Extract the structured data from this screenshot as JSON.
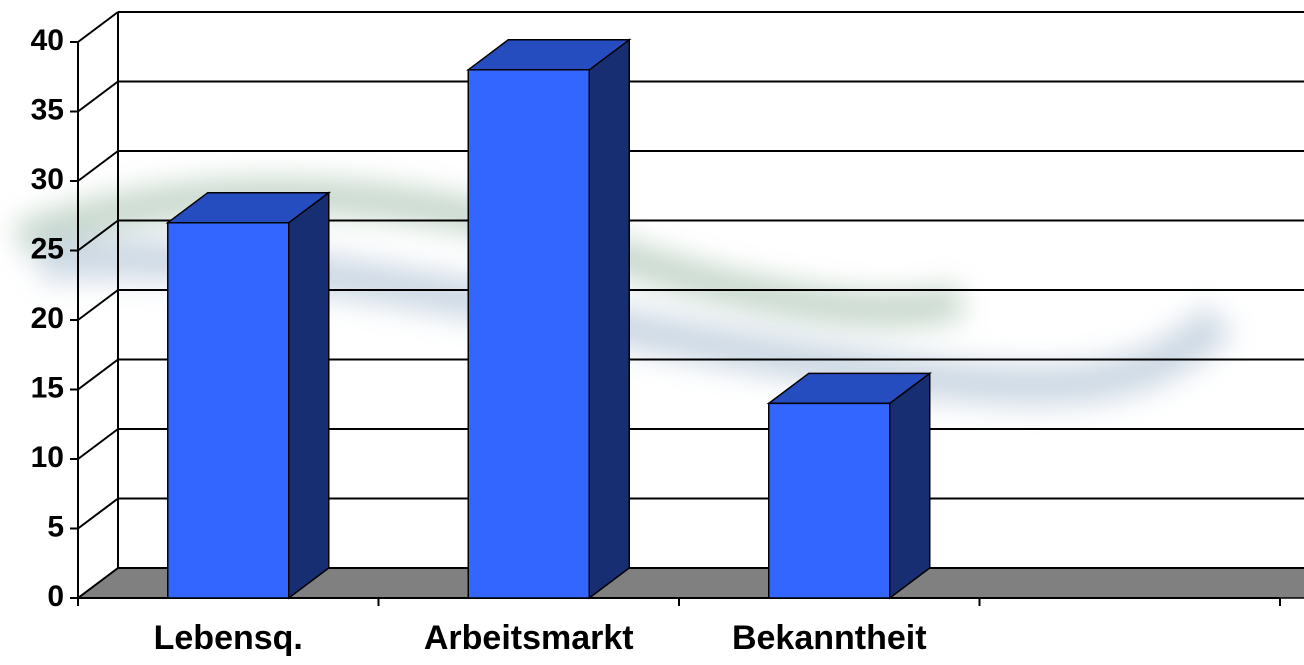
{
  "chart_data": {
    "type": "bar3d",
    "categories": [
      "Lebensq.",
      "Arbeitsmarkt",
      "Bekanntheit",
      null
    ],
    "values": [
      27,
      38,
      14,
      null
    ],
    "color": "#3366ff",
    "ylim": [
      0,
      40
    ],
    "yticks": [
      0,
      5,
      10,
      15,
      20,
      25,
      30,
      35,
      40
    ],
    "grid": true
  }
}
